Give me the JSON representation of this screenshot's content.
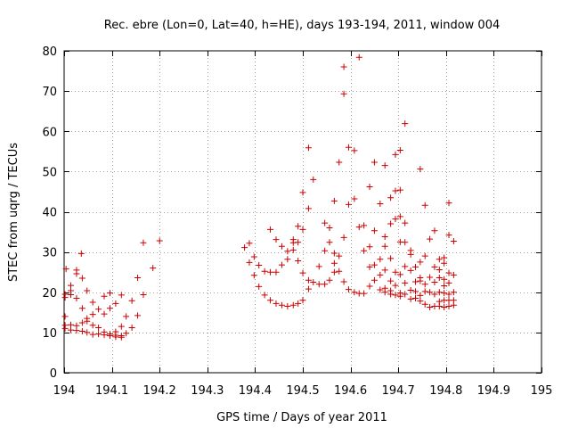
{
  "chart_data": {
    "type": "scatter",
    "title": "Rec. ebre (Lon=0, Lat=40, h=HE), days 193-194, 2011, window 004",
    "xlabel": "GPS time / Days of year 2011",
    "ylabel": "STEC from uqrg / TECUs",
    "xlim": [
      194,
      195
    ],
    "ylim": [
      0,
      80
    ],
    "grid": true,
    "marker": "+",
    "color": "#cc0000",
    "xticks": [
      194,
      194.1,
      194.2,
      194.3,
      194.4,
      194.5,
      194.6,
      194.7,
      194.8,
      194.9,
      195
    ],
    "xtick_labels": [
      "194",
      "194.1",
      "194.2",
      "194.3",
      "194.4",
      "194.5",
      "194.6",
      "194.7",
      "194.8",
      "194.9",
      "195"
    ],
    "yticks": [
      0,
      10,
      20,
      30,
      40,
      50,
      60,
      70,
      80
    ],
    "ytick_labels": [
      "0",
      "10",
      "20",
      "30",
      "40",
      "50",
      "60",
      "70",
      "80"
    ],
    "points": [
      [
        194.002,
        19.5
      ],
      [
        194.002,
        18.7
      ],
      [
        194.002,
        14.0
      ],
      [
        194.002,
        11.8
      ],
      [
        194.002,
        11.0
      ],
      [
        194.004,
        25.8
      ],
      [
        194.014,
        21.7
      ],
      [
        194.014,
        20.4
      ],
      [
        194.014,
        19.4
      ],
      [
        194.014,
        11.9
      ],
      [
        194.014,
        10.6
      ],
      [
        194.026,
        25.5
      ],
      [
        194.026,
        24.6
      ],
      [
        194.026,
        18.5
      ],
      [
        194.026,
        11.7
      ],
      [
        194.026,
        10.5
      ],
      [
        194.036,
        29.6
      ],
      [
        194.038,
        23.5
      ],
      [
        194.038,
        16.0
      ],
      [
        194.038,
        12.4
      ],
      [
        194.038,
        10.3
      ],
      [
        194.048,
        20.4
      ],
      [
        194.048,
        13.5
      ],
      [
        194.048,
        12.8
      ],
      [
        194.048,
        10.0
      ],
      [
        194.06,
        17.5
      ],
      [
        194.06,
        14.5
      ],
      [
        194.06,
        11.8
      ],
      [
        194.06,
        9.5
      ],
      [
        194.072,
        15.8
      ],
      [
        194.072,
        11.2
      ],
      [
        194.072,
        9.6
      ],
      [
        194.084,
        19.0
      ],
      [
        194.084,
        14.6
      ],
      [
        194.084,
        10.1
      ],
      [
        194.084,
        9.4
      ],
      [
        194.096,
        19.8
      ],
      [
        194.096,
        16.0
      ],
      [
        194.096,
        9.6
      ],
      [
        194.096,
        9.2
      ],
      [
        194.108,
        17.2
      ],
      [
        194.108,
        10.2
      ],
      [
        194.108,
        9.3
      ],
      [
        194.108,
        8.9
      ],
      [
        194.12,
        19.3
      ],
      [
        194.12,
        11.5
      ],
      [
        194.12,
        9.2
      ],
      [
        194.12,
        8.8
      ],
      [
        194.13,
        14.0
      ],
      [
        194.13,
        9.8
      ],
      [
        194.142,
        17.9
      ],
      [
        194.142,
        11.2
      ],
      [
        194.154,
        23.6
      ],
      [
        194.154,
        14.2
      ],
      [
        194.166,
        32.3
      ],
      [
        194.166,
        19.4
      ],
      [
        194.186,
        26.0
      ],
      [
        194.2,
        32.8
      ],
      [
        194.378,
        31.1
      ],
      [
        194.388,
        32.2
      ],
      [
        194.388,
        27.4
      ],
      [
        194.398,
        28.8
      ],
      [
        194.398,
        24.2
      ],
      [
        194.408,
        26.7
      ],
      [
        194.408,
        21.4
      ],
      [
        194.42,
        25.2
      ],
      [
        194.42,
        19.3
      ],
      [
        194.432,
        35.6
      ],
      [
        194.432,
        25.0
      ],
      [
        194.432,
        18.0
      ],
      [
        194.444,
        33.1
      ],
      [
        194.444,
        25.0
      ],
      [
        194.444,
        17.2
      ],
      [
        194.456,
        31.4
      ],
      [
        194.456,
        26.8
      ],
      [
        194.456,
        16.8
      ],
      [
        194.468,
        30.2
      ],
      [
        194.468,
        28.2
      ],
      [
        194.468,
        16.5
      ],
      [
        194.48,
        33.1
      ],
      [
        194.48,
        32.3
      ],
      [
        194.48,
        30.5
      ],
      [
        194.48,
        16.8
      ],
      [
        194.49,
        36.4
      ],
      [
        194.49,
        32.4
      ],
      [
        194.49,
        27.8
      ],
      [
        194.49,
        17.2
      ],
      [
        194.5,
        44.8
      ],
      [
        194.5,
        35.6
      ],
      [
        194.5,
        24.8
      ],
      [
        194.5,
        18.0
      ],
      [
        194.512,
        55.9
      ],
      [
        194.512,
        40.8
      ],
      [
        194.512,
        23.0
      ],
      [
        194.512,
        20.8
      ],
      [
        194.522,
        48.0
      ],
      [
        194.522,
        22.5
      ],
      [
        194.534,
        26.4
      ],
      [
        194.534,
        22.0
      ],
      [
        194.546,
        37.2
      ],
      [
        194.546,
        30.3
      ],
      [
        194.546,
        22.0
      ],
      [
        194.556,
        36.0
      ],
      [
        194.556,
        32.4
      ],
      [
        194.556,
        23.0
      ],
      [
        194.566,
        42.7
      ],
      [
        194.566,
        29.7
      ],
      [
        194.566,
        27.2
      ],
      [
        194.566,
        25.0
      ],
      [
        194.576,
        52.3
      ],
      [
        194.576,
        29.0
      ],
      [
        194.576,
        25.2
      ],
      [
        194.586,
        76.0
      ],
      [
        194.586,
        69.3
      ],
      [
        194.586,
        33.6
      ],
      [
        194.586,
        22.6
      ],
      [
        194.596,
        56.0
      ],
      [
        194.596,
        41.8
      ],
      [
        194.596,
        20.7
      ],
      [
        194.608,
        55.2
      ],
      [
        194.608,
        43.2
      ],
      [
        194.608,
        20.0
      ],
      [
        194.618,
        78.4
      ],
      [
        194.618,
        36.2
      ],
      [
        194.618,
        19.7
      ],
      [
        194.628,
        36.6
      ],
      [
        194.628,
        30.3
      ],
      [
        194.628,
        19.7
      ],
      [
        194.64,
        46.2
      ],
      [
        194.64,
        31.3
      ],
      [
        194.64,
        26.3
      ],
      [
        194.64,
        21.5
      ],
      [
        194.65,
        52.3
      ],
      [
        194.65,
        35.3
      ],
      [
        194.65,
        26.8
      ],
      [
        194.65,
        23.0
      ],
      [
        194.662,
        42.0
      ],
      [
        194.662,
        28.2
      ],
      [
        194.662,
        24.3
      ],
      [
        194.662,
        20.6
      ],
      [
        194.672,
        51.5
      ],
      [
        194.672,
        33.8
      ],
      [
        194.672,
        31.4
      ],
      [
        194.672,
        25.5
      ],
      [
        194.672,
        21.0
      ],
      [
        194.672,
        20.0
      ],
      [
        194.684,
        43.5
      ],
      [
        194.684,
        37.0
      ],
      [
        194.684,
        28.4
      ],
      [
        194.684,
        22.8
      ],
      [
        194.684,
        20.4
      ],
      [
        194.684,
        19.5
      ],
      [
        194.694,
        54.2
      ],
      [
        194.694,
        45.2
      ],
      [
        194.694,
        38.2
      ],
      [
        194.694,
        25.0
      ],
      [
        194.694,
        21.7
      ],
      [
        194.694,
        19.3
      ],
      [
        194.704,
        55.3
      ],
      [
        194.704,
        45.4
      ],
      [
        194.704,
        38.8
      ],
      [
        194.704,
        32.5
      ],
      [
        194.704,
        24.4
      ],
      [
        194.704,
        19.8
      ],
      [
        194.704,
        19.0
      ],
      [
        194.714,
        61.9
      ],
      [
        194.714,
        37.2
      ],
      [
        194.714,
        32.4
      ],
      [
        194.714,
        26.4
      ],
      [
        194.714,
        22.3
      ],
      [
        194.714,
        19.5
      ],
      [
        194.726,
        30.4
      ],
      [
        194.726,
        29.4
      ],
      [
        194.726,
        25.4
      ],
      [
        194.726,
        20.5
      ],
      [
        194.726,
        18.3
      ],
      [
        194.736,
        26.3
      ],
      [
        194.736,
        22.6
      ],
      [
        194.736,
        20.2
      ],
      [
        194.736,
        18.5
      ],
      [
        194.746,
        50.6
      ],
      [
        194.746,
        27.5
      ],
      [
        194.746,
        23.6
      ],
      [
        194.746,
        22.8
      ],
      [
        194.746,
        19.2
      ],
      [
        194.746,
        17.8
      ],
      [
        194.756,
        41.6
      ],
      [
        194.756,
        29.0
      ],
      [
        194.756,
        22.0
      ],
      [
        194.756,
        20.2
      ],
      [
        194.756,
        17.0
      ],
      [
        194.766,
        33.2
      ],
      [
        194.766,
        23.7
      ],
      [
        194.766,
        20.0
      ],
      [
        194.766,
        16.3
      ],
      [
        194.776,
        35.3
      ],
      [
        194.776,
        26.3
      ],
      [
        194.776,
        22.5
      ],
      [
        194.776,
        19.5
      ],
      [
        194.776,
        16.5
      ],
      [
        194.786,
        28.2
      ],
      [
        194.786,
        25.6
      ],
      [
        194.786,
        23.6
      ],
      [
        194.786,
        20.0
      ],
      [
        194.786,
        17.7
      ],
      [
        194.786,
        16.5
      ],
      [
        194.796,
        28.6
      ],
      [
        194.796,
        27.2
      ],
      [
        194.796,
        23.2
      ],
      [
        194.796,
        21.6
      ],
      [
        194.796,
        19.8
      ],
      [
        194.796,
        18.0
      ],
      [
        194.796,
        16.3
      ],
      [
        194.806,
        42.2
      ],
      [
        194.806,
        34.2
      ],
      [
        194.806,
        24.8
      ],
      [
        194.806,
        22.3
      ],
      [
        194.806,
        19.5
      ],
      [
        194.806,
        18.0
      ],
      [
        194.806,
        16.5
      ],
      [
        194.816,
        32.7
      ],
      [
        194.816,
        24.3
      ],
      [
        194.816,
        20.0
      ],
      [
        194.816,
        18.0
      ],
      [
        194.816,
        16.8
      ]
    ]
  }
}
